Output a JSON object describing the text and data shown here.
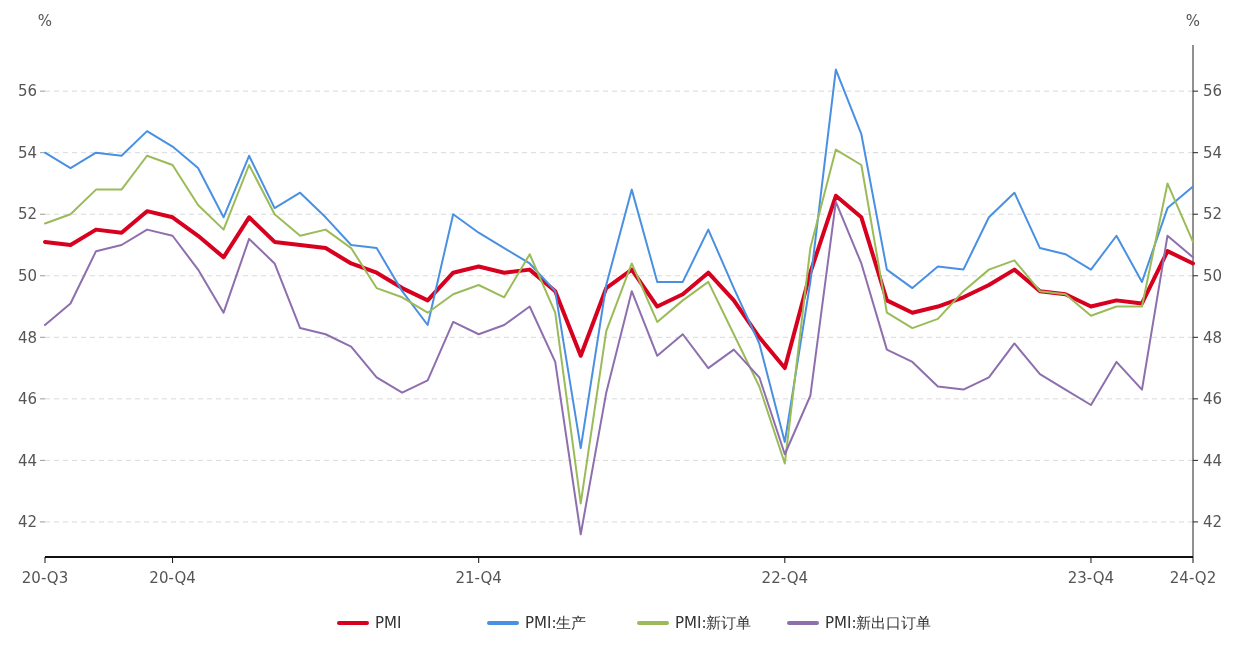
{
  "chart_data": {
    "type": "line",
    "ylabel": "%",
    "y2label": "%",
    "categories": [
      "20-Q3",
      null,
      null,
      null,
      null,
      "20-Q4",
      null,
      null,
      null,
      null,
      null,
      null,
      null,
      null,
      null,
      null,
      null,
      "21-Q4",
      null,
      null,
      null,
      null,
      null,
      null,
      null,
      null,
      null,
      null,
      null,
      "22-Q4",
      null,
      null,
      null,
      null,
      null,
      null,
      null,
      null,
      null,
      null,
      null,
      "23-Q4",
      null,
      null,
      null,
      "24-Q2"
    ],
    "series": [
      {
        "name": "PMI",
        "color": "#d7001f",
        "values": [
          51.1,
          51.0,
          51.5,
          51.4,
          52.1,
          51.9,
          51.3,
          50.6,
          51.9,
          51.1,
          51.0,
          50.9,
          50.4,
          50.1,
          49.6,
          49.2,
          50.1,
          50.3,
          50.1,
          50.2,
          49.5,
          47.4,
          49.6,
          50.2,
          49.0,
          49.4,
          50.1,
          49.2,
          48.0,
          47.0,
          50.1,
          52.6,
          51.9,
          49.2,
          48.8,
          49.0,
          49.3,
          49.7,
          50.2,
          49.5,
          49.4,
          49.0,
          49.2,
          49.1,
          50.8,
          50.4
        ]
      },
      {
        "name": "PMI:生产",
        "color": "#4a90e2",
        "values": [
          54.0,
          53.5,
          54.0,
          53.9,
          54.7,
          54.2,
          53.5,
          51.9,
          53.9,
          52.2,
          52.7,
          51.9,
          51.0,
          50.9,
          49.5,
          48.4,
          52.0,
          51.4,
          50.9,
          50.4,
          49.5,
          44.4,
          49.7,
          52.8,
          49.8,
          49.8,
          51.5,
          49.6,
          47.8,
          44.6,
          49.8,
          56.7,
          54.6,
          50.2,
          49.6,
          50.3,
          50.2,
          51.9,
          52.7,
          50.9,
          50.7,
          50.2,
          51.3,
          49.8,
          52.2,
          52.9
        ]
      },
      {
        "name": "PMI:新订单",
        "color": "#9bbb59",
        "values": [
          51.7,
          52.0,
          52.8,
          52.8,
          53.9,
          53.6,
          52.3,
          51.5,
          53.6,
          52.0,
          51.3,
          51.5,
          50.9,
          49.6,
          49.3,
          48.8,
          49.4,
          49.7,
          49.3,
          50.7,
          48.8,
          42.6,
          48.2,
          50.4,
          48.5,
          49.2,
          49.8,
          48.1,
          46.4,
          43.9,
          50.9,
          54.1,
          53.6,
          48.8,
          48.3,
          48.6,
          49.5,
          50.2,
          50.5,
          49.5,
          49.4,
          48.7,
          49.0,
          49.0,
          53.0,
          51.1
        ]
      },
      {
        "name": "PMI:新出口订单",
        "color": "#8e6fae",
        "values": [
          48.4,
          49.1,
          50.8,
          51.0,
          51.5,
          51.3,
          50.2,
          48.8,
          51.2,
          50.4,
          48.3,
          48.1,
          47.7,
          46.7,
          46.2,
          46.6,
          48.5,
          48.1,
          48.4,
          49.0,
          47.2,
          41.6,
          46.2,
          49.5,
          47.4,
          48.1,
          47.0,
          47.6,
          46.7,
          44.2,
          46.1,
          52.4,
          50.4,
          47.6,
          47.2,
          46.4,
          46.3,
          46.7,
          47.8,
          46.8,
          46.3,
          45.8,
          47.2,
          46.3,
          51.3,
          50.6
        ]
      }
    ],
    "ylim": [
      40.86,
      57.5
    ],
    "yticks": [
      42,
      44,
      46,
      48,
      50,
      52,
      54,
      56
    ],
    "y2lim": [
      40.86,
      57.5
    ],
    "y2ticks": [
      42,
      44,
      46,
      48,
      50,
      52,
      54,
      56
    ],
    "grid": "y",
    "legend": "bottom",
    "line_style": "solid"
  }
}
